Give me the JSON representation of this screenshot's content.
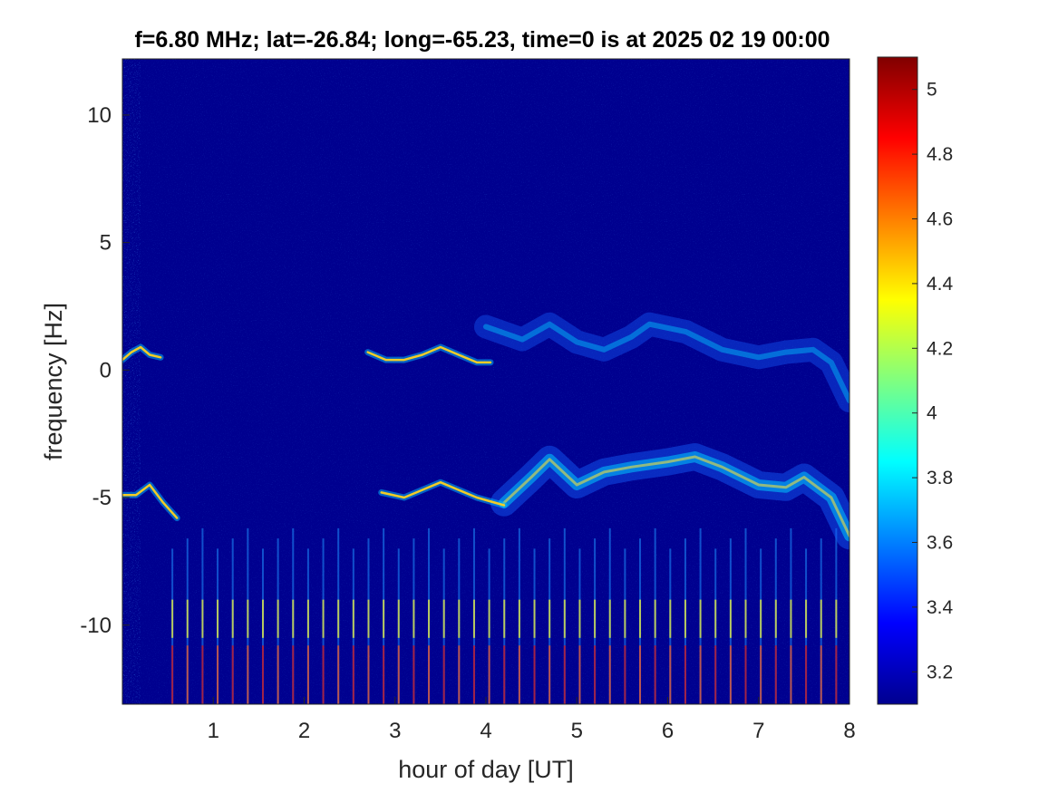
{
  "chart_data": {
    "type": "heatmap",
    "title": "f=6.80 MHz;  lat=-26.84; long=-65.23, time=0 is at 2025 02 19 00:00",
    "xlabel": "hour of day [UT]",
    "ylabel": "frequency [Hz]",
    "xlim": [
      0,
      8
    ],
    "ylim": [
      -13.1,
      12.2
    ],
    "xticks": [
      1,
      2,
      3,
      4,
      5,
      6,
      7,
      8
    ],
    "yticks": [
      -10,
      -5,
      0,
      5,
      10
    ],
    "colormap": "jet",
    "clim": [
      3.1,
      5.1
    ],
    "colorbar_ticks": [
      3.2,
      3.4,
      3.6,
      3.8,
      4,
      4.2,
      4.4,
      4.6,
      4.8,
      5
    ],
    "background_value": 3.1,
    "colors": {
      "background": "#00008f",
      "axis": "#262626"
    },
    "features": {
      "trace_upper": [
        {
          "x": 2.7,
          "y": 0.7
        },
        {
          "x": 2.9,
          "y": 0.4
        },
        {
          "x": 3.1,
          "y": 0.4
        },
        {
          "x": 3.3,
          "y": 0.6
        },
        {
          "x": 3.5,
          "y": 0.9
        },
        {
          "x": 3.7,
          "y": 0.6
        },
        {
          "x": 3.9,
          "y": 0.3
        },
        {
          "x": 4.05,
          "y": 0.3
        }
      ],
      "trace_left": [
        {
          "x": 0.0,
          "y": 0.4
        },
        {
          "x": 0.1,
          "y": 0.7
        },
        {
          "x": 0.2,
          "y": 0.9
        },
        {
          "x": 0.3,
          "y": 0.6
        },
        {
          "x": 0.42,
          "y": 0.5
        }
      ],
      "trace_lower": [
        {
          "x": 2.85,
          "y": -4.8
        },
        {
          "x": 3.1,
          "y": -5.0
        },
        {
          "x": 3.3,
          "y": -4.7
        },
        {
          "x": 3.5,
          "y": -4.4
        },
        {
          "x": 3.7,
          "y": -4.7
        },
        {
          "x": 3.9,
          "y": -5.0
        },
        {
          "x": 4.2,
          "y": -5.3
        }
      ],
      "trace_lower_left": [
        {
          "x": 0.0,
          "y": -4.9
        },
        {
          "x": 0.15,
          "y": -4.9
        },
        {
          "x": 0.3,
          "y": -4.5
        },
        {
          "x": 0.45,
          "y": -5.2
        },
        {
          "x": 0.6,
          "y": -5.8
        }
      ],
      "band_lower": [
        {
          "x": 4.2,
          "y": -5.2
        },
        {
          "x": 4.5,
          "y": -4.2
        },
        {
          "x": 4.7,
          "y": -3.5
        },
        {
          "x": 5.0,
          "y": -4.5
        },
        {
          "x": 5.3,
          "y": -4.0
        },
        {
          "x": 5.6,
          "y": -3.8
        },
        {
          "x": 6.0,
          "y": -3.6
        },
        {
          "x": 6.3,
          "y": -3.4
        },
        {
          "x": 6.6,
          "y": -3.8
        },
        {
          "x": 7.0,
          "y": -4.5
        },
        {
          "x": 7.3,
          "y": -4.6
        },
        {
          "x": 7.5,
          "y": -4.2
        },
        {
          "x": 7.8,
          "y": -5.0
        },
        {
          "x": 8.0,
          "y": -6.5
        }
      ],
      "band_upper": [
        {
          "x": 4.0,
          "y": 1.7
        },
        {
          "x": 4.4,
          "y": 1.2
        },
        {
          "x": 4.7,
          "y": 1.8
        },
        {
          "x": 5.0,
          "y": 1.1
        },
        {
          "x": 5.3,
          "y": 0.8
        },
        {
          "x": 5.6,
          "y": 1.3
        },
        {
          "x": 5.8,
          "y": 1.8
        },
        {
          "x": 6.2,
          "y": 1.5
        },
        {
          "x": 6.6,
          "y": 0.8
        },
        {
          "x": 7.0,
          "y": 0.5
        },
        {
          "x": 7.3,
          "y": 0.7
        },
        {
          "x": 7.6,
          "y": 0.8
        },
        {
          "x": 7.8,
          "y": 0.3
        },
        {
          "x": 8.0,
          "y": -1.2
        }
      ],
      "periodic_streaks": {
        "x_start": 0.55,
        "x_end": 7.9,
        "spacing_hours": 0.166,
        "y_min": -13.1,
        "y_max": -7.0
      }
    }
  }
}
